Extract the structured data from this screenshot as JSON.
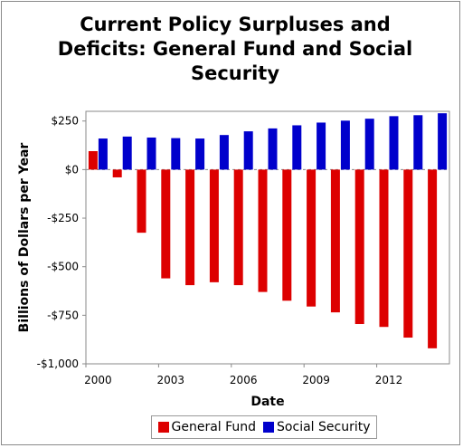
{
  "chart_data": {
    "type": "bar",
    "title": "Current Policy Surpluses and Deficits: General Fund and Social Security",
    "xlabel": "Date",
    "ylabel": "Billions of Dollars per Year",
    "x": [
      2000,
      2001,
      2002,
      2003,
      2004,
      2005,
      2006,
      2007,
      2008,
      2009,
      2010,
      2011,
      2012,
      2013,
      2014
    ],
    "x_tick_labels": [
      "2000",
      "2003",
      "2006",
      "2009",
      "2012"
    ],
    "y_tick_labels": [
      "$250",
      "$0",
      "-$250",
      "-$500",
      "-$750",
      "-$1,000"
    ],
    "y_ticks": [
      250,
      0,
      -250,
      -500,
      -750,
      -1000
    ],
    "ylim": [
      -1000,
      300
    ],
    "grid": false,
    "legend_position": "bottom",
    "series": [
      {
        "name": "General Fund",
        "color": "#dd0000",
        "values": [
          95,
          -40,
          -325,
          -560,
          -595,
          -580,
          -595,
          -630,
          -675,
          -705,
          -735,
          -795,
          -810,
          -865,
          -920
        ]
      },
      {
        "name": "Social Security",
        "color": "#0000cc",
        "values": [
          160,
          170,
          165,
          162,
          160,
          178,
          197,
          212,
          228,
          242,
          252,
          262,
          275,
          280,
          290
        ]
      }
    ]
  }
}
